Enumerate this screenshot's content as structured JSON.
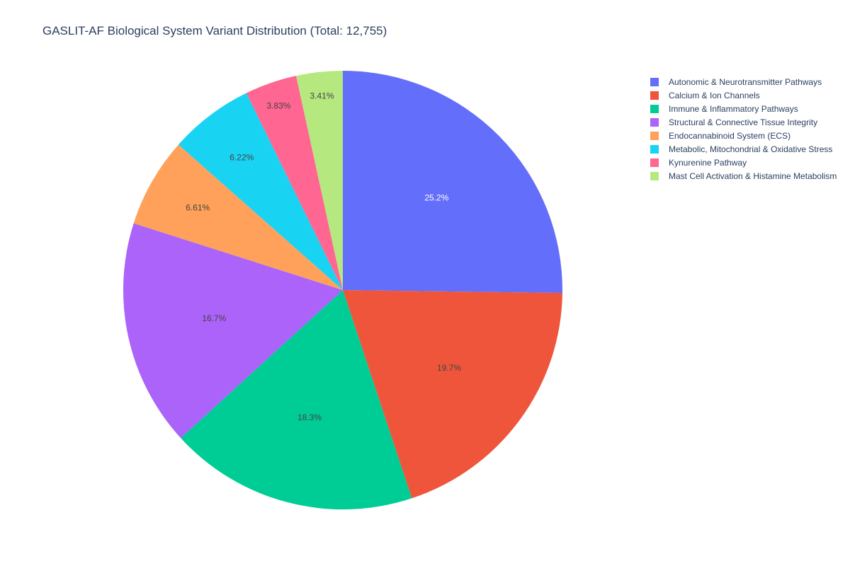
{
  "chart_data": {
    "type": "pie",
    "title": "GASLIT-AF Biological System Variant Distribution (Total: 12,755)",
    "legend_position": "top-right",
    "slices": [
      {
        "name": "Autonomic & Neurotransmitter Pathways",
        "percent": 25.2,
        "label": "25.2%",
        "color": "#636efa",
        "label_color": "#ffffff"
      },
      {
        "name": "Calcium & Ion Channels",
        "percent": 19.7,
        "label": "19.7%",
        "color": "#EF553B",
        "label_color": "#444444"
      },
      {
        "name": "Immune & Inflammatory Pathways",
        "percent": 18.3,
        "label": "18.3%",
        "color": "#00cc96",
        "label_color": "#444444"
      },
      {
        "name": "Structural & Connective Tissue Integrity",
        "percent": 16.7,
        "label": "16.7%",
        "color": "#ab63fa",
        "label_color": "#444444"
      },
      {
        "name": "Endocannabinoid System (ECS)",
        "percent": 6.61,
        "label": "6.61%",
        "color": "#FFA15A",
        "label_color": "#444444"
      },
      {
        "name": "Metabolic, Mitochondrial & Oxidative Stress",
        "percent": 6.22,
        "label": "6.22%",
        "color": "#19d3f3",
        "label_color": "#444444"
      },
      {
        "name": "Kynurenine Pathway",
        "percent": 3.83,
        "label": "3.83%",
        "color": "#FF6692",
        "label_color": "#444444"
      },
      {
        "name": "Mast Cell Activation & Histamine Metabolism",
        "percent": 3.41,
        "label": "3.41%",
        "color": "#B6E880",
        "label_color": "#444444"
      }
    ]
  }
}
